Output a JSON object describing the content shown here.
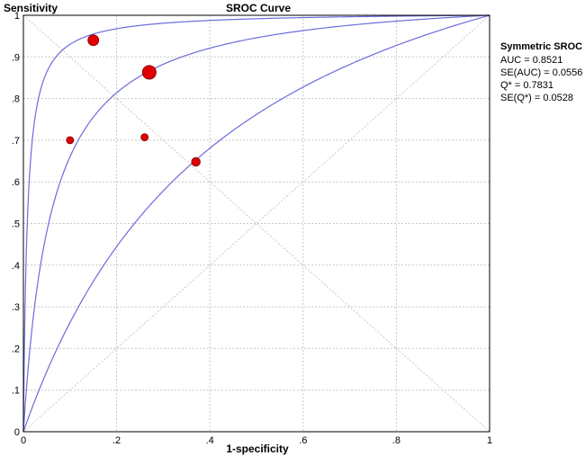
{
  "chart_data": {
    "type": "scatter",
    "title": "SROC Curve",
    "xlabel": "1-specificity",
    "ylabel": "Sensitivity",
    "xlim": [
      0,
      1
    ],
    "ylim": [
      0,
      1
    ],
    "grid": true,
    "x_ticks": [
      "0",
      ".2",
      ".4",
      ".6",
      ".8",
      "1"
    ],
    "y_ticks": [
      "0",
      ".1",
      ".2",
      ".3",
      ".4",
      ".5",
      ".6",
      ".7",
      ".8",
      ".9",
      "1"
    ],
    "points": [
      {
        "x": 0.1,
        "y": 0.7,
        "weight": 1.0
      },
      {
        "x": 0.15,
        "y": 0.94,
        "weight": 1.5
      },
      {
        "x": 0.26,
        "y": 0.707,
        "weight": 1.0
      },
      {
        "x": 0.27,
        "y": 0.863,
        "weight": 1.9
      },
      {
        "x": 0.37,
        "y": 0.648,
        "weight": 1.2
      }
    ],
    "curves": [
      {
        "shape": 120
      },
      {
        "shape": 17.5
      },
      {
        "shape": 3.2
      }
    ],
    "point_color": "#e00000",
    "curve_color": "#6b6bdc",
    "legend": {
      "title": "Symmetric SROC",
      "lines": [
        "AUC = 0.8521",
        "SE(AUC) = 0.0556",
        "Q* = 0.7831",
        "SE(Q*) = 0.0528"
      ]
    }
  }
}
